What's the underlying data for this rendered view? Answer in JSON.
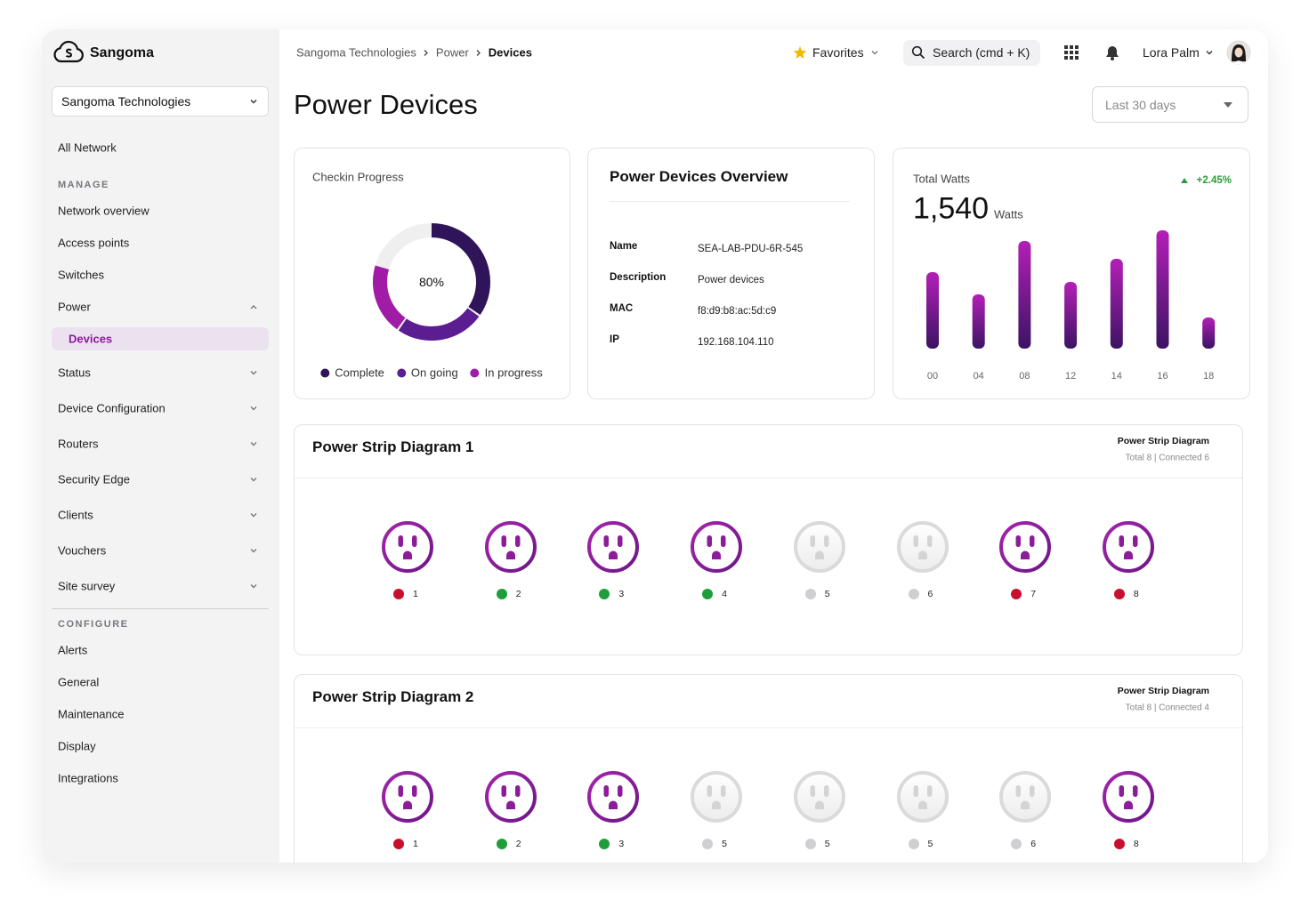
{
  "sidebar": {
    "brand": "Sangoma",
    "org": "Sangoma Technologies",
    "groups": [
      {
        "items": [
          {
            "label": "All Network"
          }
        ]
      },
      {
        "title": "MANAGE",
        "items": [
          {
            "label": "Network overview"
          },
          {
            "label": "Access points"
          },
          {
            "label": "Switches"
          },
          {
            "label": "Power",
            "chevron": "up",
            "children": [
              {
                "label": "Devices",
                "active": true
              }
            ]
          },
          {
            "label": "Status",
            "chevron": "down"
          },
          {
            "label": "Device Configuration",
            "chevron": "down"
          },
          {
            "label": "Routers",
            "chevron": "down"
          },
          {
            "label": "Security Edge",
            "chevron": "down"
          },
          {
            "label": "Clients",
            "chevron": "down"
          },
          {
            "label": "Vouchers",
            "chevron": "down"
          },
          {
            "label": "Site survey",
            "chevron": "down"
          }
        ]
      },
      {
        "title": "CONFIGURE",
        "divider": true,
        "items": [
          {
            "label": "Alerts"
          },
          {
            "label": "General"
          },
          {
            "label": "Maintenance"
          },
          {
            "label": "Display"
          },
          {
            "label": "Integrations"
          }
        ]
      }
    ]
  },
  "topbar": {
    "breadcrumb": [
      "Sangoma Technologies",
      "Power",
      "Devices"
    ],
    "favorites": "Favorites",
    "search": "Search (cmd + K)",
    "user": "Lora Palm"
  },
  "page": {
    "title": "Power Devices",
    "range": "Last 30 days"
  },
  "checkin": {
    "title": "Checkin Progress",
    "center": "80%",
    "segments": [
      {
        "name": "Complete",
        "color": "#2f1459",
        "value": 35
      },
      {
        "name": "On going",
        "color": "#5c1c92",
        "value": 25
      },
      {
        "name": "In progress",
        "color": "#a11ca6",
        "value": 20
      }
    ]
  },
  "overview": {
    "title": "Power Devices Overview",
    "fields": [
      {
        "label": "Name",
        "value": "SEA-LAB-PDU-6R-545"
      },
      {
        "label": "Description",
        "value": "Power devices"
      },
      {
        "label": "MAC",
        "value": "f8:d9:b8:ac:5d:c9"
      },
      {
        "label": "IP",
        "value": "192.168.104.110"
      }
    ]
  },
  "watts": {
    "title": "Total Watts",
    "change": "+2.45%",
    "total": "1,540",
    "unit": "Watts",
    "categories": [
      "00",
      "04",
      "08",
      "12",
      "14",
      "16",
      "18"
    ],
    "values": [
      86,
      61,
      121,
      75,
      101,
      133,
      35
    ]
  },
  "strips": [
    {
      "title": "Power Strip Diagram 1",
      "summary_title": "Power Strip Diagram",
      "summary": "Total 8 | Connected 6",
      "outlets": [
        {
          "label": "1",
          "status": "#c8102e",
          "active": true
        },
        {
          "label": "2",
          "status": "#1f9d3a",
          "active": true
        },
        {
          "label": "3",
          "status": "#1f9d3a",
          "active": true
        },
        {
          "label": "4",
          "status": "#1f9d3a",
          "active": true
        },
        {
          "label": "5",
          "status": "#cfcfd2",
          "active": false
        },
        {
          "label": "6",
          "status": "#cfcfd2",
          "active": false
        },
        {
          "label": "7",
          "status": "#c8102e",
          "active": true
        },
        {
          "label": "8",
          "status": "#c8102e",
          "active": true
        }
      ]
    },
    {
      "title": "Power Strip Diagram 2",
      "summary_title": "Power Strip Diagram",
      "summary": "Total 8 | Connected 4",
      "outlets": [
        {
          "label": "1",
          "status": "#c8102e",
          "active": true
        },
        {
          "label": "2",
          "status": "#1f9d3a",
          "active": true
        },
        {
          "label": "3",
          "status": "#1f9d3a",
          "active": true
        },
        {
          "label": "5",
          "status": "#cfcfd2",
          "active": false
        },
        {
          "label": "5",
          "status": "#cfcfd2",
          "active": false
        },
        {
          "label": "5",
          "status": "#cfcfd2",
          "active": false
        },
        {
          "label": "6",
          "status": "#cfcfd2",
          "active": false
        },
        {
          "label": "8",
          "status": "#c8102e",
          "active": true
        }
      ]
    }
  ]
}
